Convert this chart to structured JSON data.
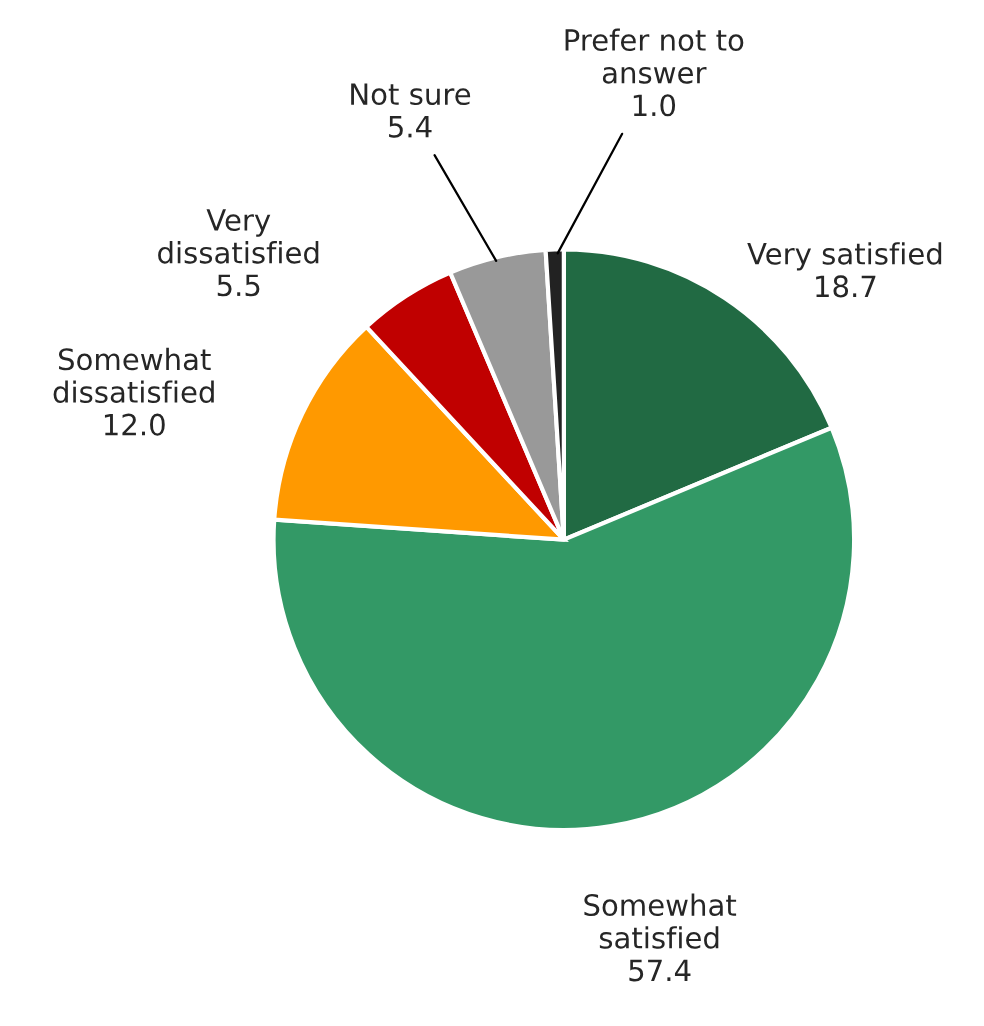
{
  "chart_data": {
    "type": "pie",
    "categories": [
      "Very satisfied",
      "Somewhat\nsatisfied",
      "Somewhat\ndissatisfied",
      "Very\ndissatisfied",
      "Not sure",
      "Prefer not to\nanswer"
    ],
    "values": [
      18.7,
      57.4,
      12.0,
      5.5,
      5.4,
      1.0
    ],
    "value_labels": [
      "18.7",
      "57.4",
      "12.0",
      "5.5",
      "5.4",
      "1.0"
    ],
    "colors": [
      "#216a43",
      "#339966",
      "#ff9900",
      "#c00000",
      "#999999",
      "#222222"
    ],
    "legend": false
  }
}
